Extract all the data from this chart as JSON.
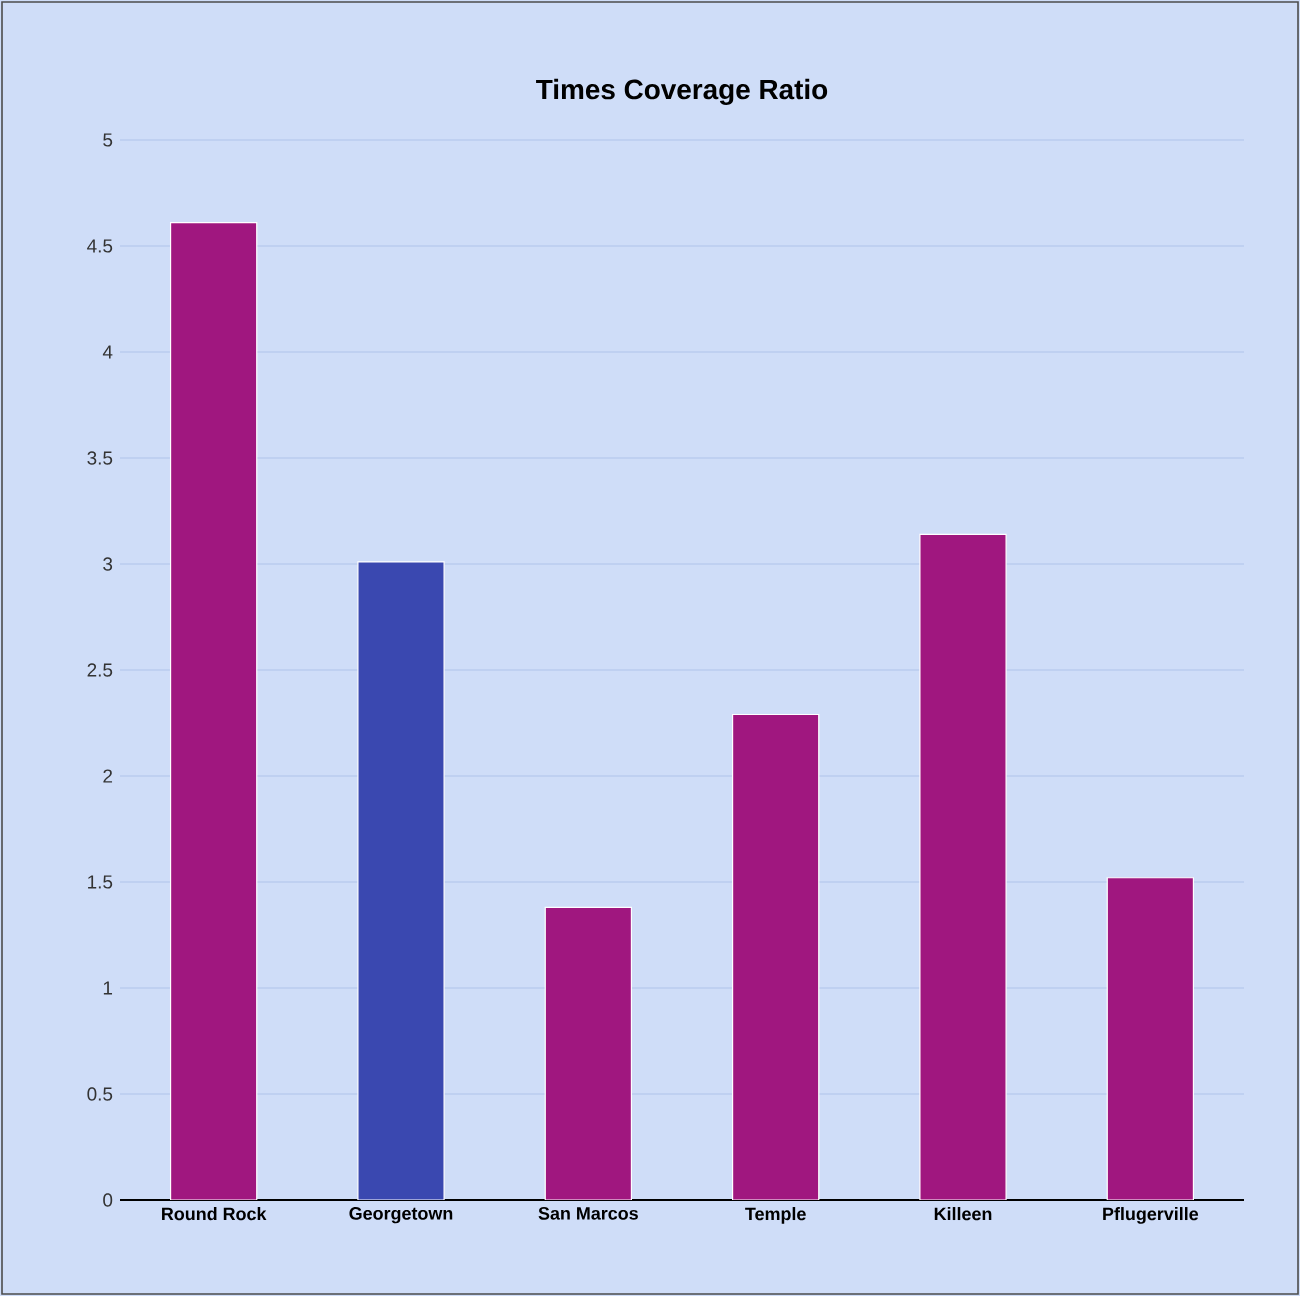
{
  "chart_data": {
    "type": "bar",
    "title": "Times Coverage Ratio",
    "categories": [
      "Round Rock",
      "Georgetown",
      "San Marcos",
      "Temple",
      "Killeen",
      "Pflugerville"
    ],
    "values": [
      4.61,
      3.01,
      1.38,
      2.29,
      3.14,
      1.52
    ],
    "colors": [
      "#a0177f",
      "#3a48b0",
      "#a0177f",
      "#a0177f",
      "#a0177f",
      "#a0177f"
    ],
    "ylim": [
      0,
      5
    ],
    "yticks": [
      0,
      0.5,
      1,
      1.5,
      2,
      2.5,
      3,
      3.5,
      4,
      4.5,
      5
    ],
    "grid": "y"
  }
}
